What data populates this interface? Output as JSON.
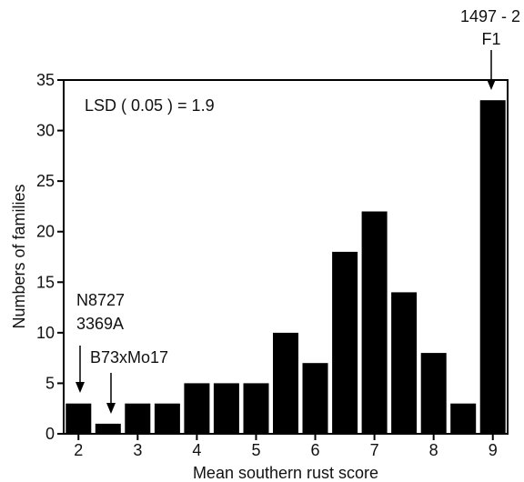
{
  "chart_data": {
    "type": "bar",
    "xlabel": "Mean southern rust score",
    "ylabel": "Numbers of families",
    "x_ticks": [
      "2",
      "3",
      "4",
      "5",
      "6",
      "7",
      "8",
      "9"
    ],
    "y_ticks": [
      "0",
      "5",
      "10",
      "15",
      "20",
      "25",
      "30",
      "35"
    ],
    "xlim": [
      1.75,
      9.25
    ],
    "ylim": [
      0,
      35
    ],
    "bar_width": 0.43,
    "bar_centers": [
      2.0,
      2.5,
      3.0,
      3.5,
      4.0,
      4.5,
      5.0,
      5.5,
      6.0,
      6.5,
      7.0,
      7.5,
      8.0,
      8.5,
      9.0
    ],
    "values": [
      3,
      1,
      3,
      3,
      5,
      5,
      5,
      10,
      7,
      18,
      22,
      14,
      8,
      3,
      33
    ],
    "bar_color": "#000000",
    "grid": false,
    "legend": "none",
    "annotations": {
      "lsd": "LSD ( 0.05 ) = 1.9",
      "n8727": "N8727",
      "a3369": "3369A",
      "b73": "B73xMo17",
      "p1497": "1497 - 2",
      "f1": "F1"
    }
  }
}
